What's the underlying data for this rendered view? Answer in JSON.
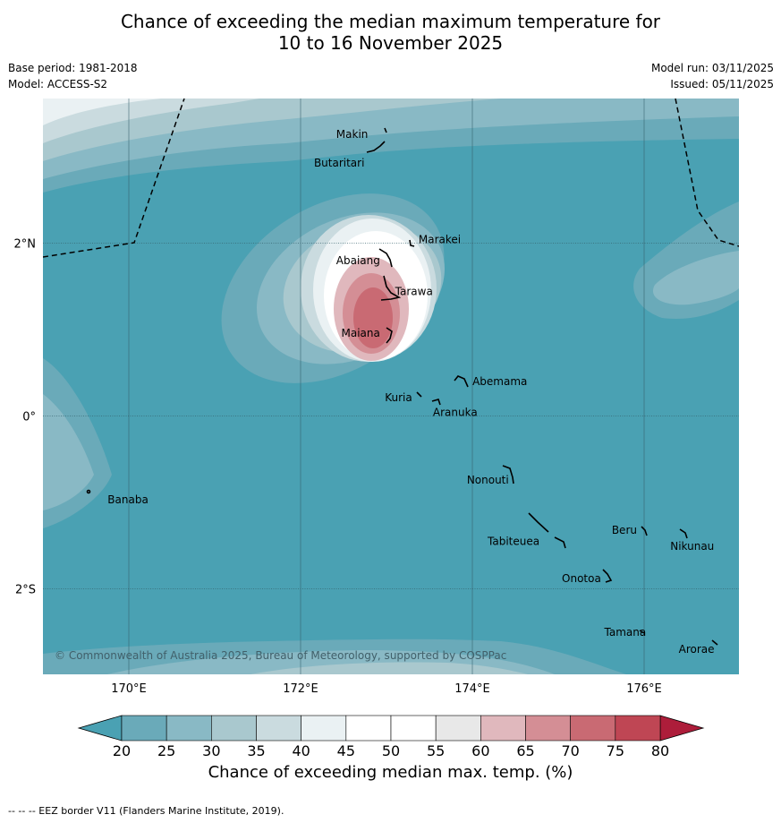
{
  "title_line1": "Chance of exceeding the median maximum temperature for",
  "title_line2": "10 to 16 November 2025",
  "base_period": "Base period: 1981-2018",
  "model": "Model: ACCESS-S2",
  "model_run": "Model run: 03/11/2025",
  "issued": "Issued: 05/11/2025",
  "copyright": "© Commonwealth of Australia 2025, Bureau of Meteorology, supported by COSPPac",
  "lon_labels": [
    {
      "lon": 170,
      "text": "170°E"
    },
    {
      "lon": 172,
      "text": "172°E"
    },
    {
      "lon": 174,
      "text": "174°E"
    },
    {
      "lon": 176,
      "text": "176°E"
    }
  ],
  "lat_labels": [
    {
      "lat": 2,
      "text": "2°N"
    },
    {
      "lat": 0,
      "text": "0°"
    },
    {
      "lat": -2,
      "text": "2°S"
    }
  ],
  "places": [
    {
      "name": "Makin",
      "lon": 172.6,
      "lat": 3.26
    },
    {
      "name": "Butaritari",
      "lon": 172.45,
      "lat": 2.93
    },
    {
      "name": "Marakei",
      "lon": 173.62,
      "lat": 2.04
    },
    {
      "name": "Abaiang",
      "lon": 172.67,
      "lat": 1.8
    },
    {
      "name": "Tarawa",
      "lon": 173.32,
      "lat": 1.44
    },
    {
      "name": "Maiana",
      "lon": 172.7,
      "lat": 0.96
    },
    {
      "name": "Abemama",
      "lon": 174.32,
      "lat": 0.4
    },
    {
      "name": "Kuria",
      "lon": 173.14,
      "lat": 0.21
    },
    {
      "name": "Aranuka",
      "lon": 173.8,
      "lat": 0.04
    },
    {
      "name": "Nonouti",
      "lon": 174.18,
      "lat": -0.74
    },
    {
      "name": "Banaba",
      "lon": 169.99,
      "lat": -0.97
    },
    {
      "name": "Beru",
      "lon": 175.77,
      "lat": -1.32
    },
    {
      "name": "Tabiteuea",
      "lon": 174.48,
      "lat": -1.45
    },
    {
      "name": "Nikunau",
      "lon": 176.56,
      "lat": -1.51
    },
    {
      "name": "Onotoa",
      "lon": 175.27,
      "lat": -1.88
    },
    {
      "name": "Tamana",
      "lon": 175.78,
      "lat": -2.5
    },
    {
      "name": "Arorae",
      "lon": 176.61,
      "lat": -2.7
    }
  ],
  "colorbar": {
    "title": "Chance of exceeding median max. temp. (%)",
    "ticks": [
      "20",
      "25",
      "30",
      "35",
      "40",
      "45",
      "50",
      "55",
      "60",
      "65",
      "70",
      "75",
      "80"
    ],
    "colors": [
      "#6aaab9",
      "#89b9c5",
      "#a9c8ce",
      "#cadbdf",
      "#eaf1f3",
      "#ffffff",
      "#ffffff",
      "#e8e8e8",
      "#e0b8bd",
      "#d48e95",
      "#c96a73",
      "#bf4654"
    ],
    "under_color": "#4aa1b3",
    "over_color": "#ad1d3a"
  },
  "map_colors": {
    "background": "#4aa1b3",
    "c25": "#6aaab9",
    "c30": "#89b9c5",
    "c35": "#a9c8ce",
    "c40": "#cadbdf",
    "c45": "#eaf1f3",
    "c50": "#ffffff",
    "c60": "#e0b8bd",
    "c65": "#d48e95",
    "c70": "#c96a73"
  },
  "legend_note": "--  --  -- EEZ border V11 (Flanders Marine Institute, 2019)."
}
